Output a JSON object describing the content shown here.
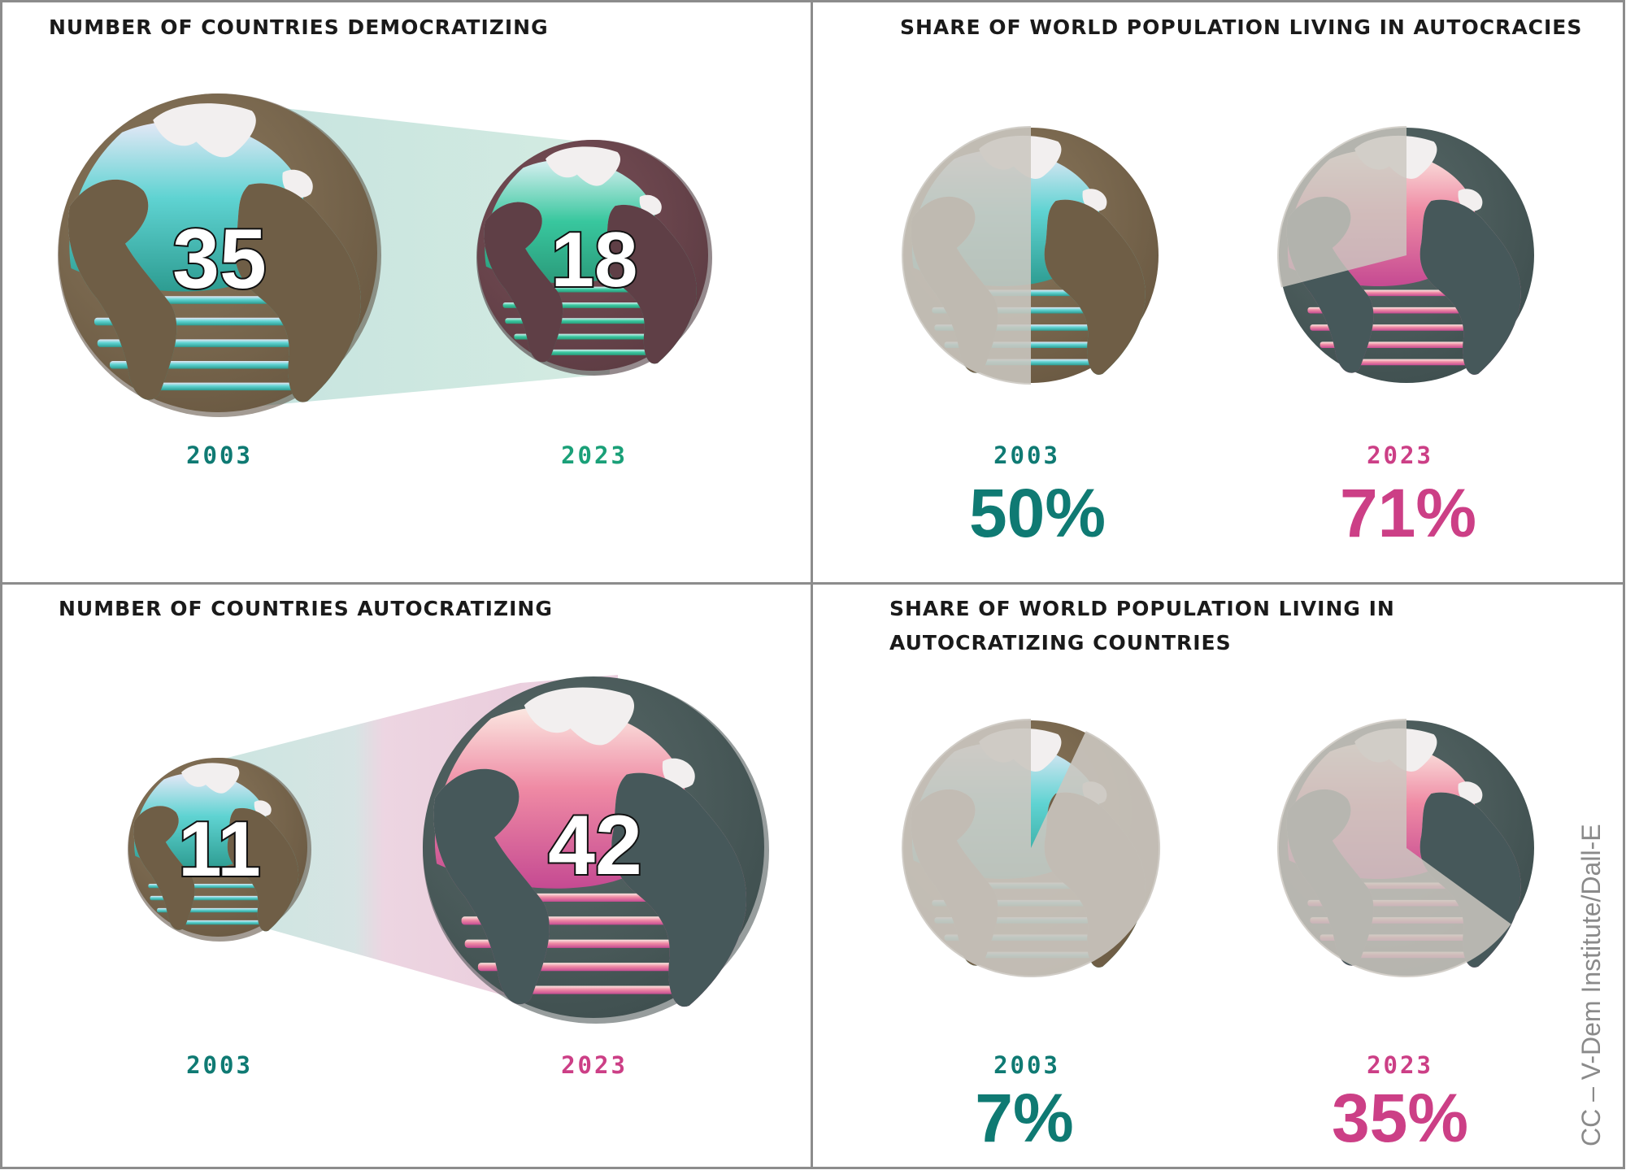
{
  "colors": {
    "teal": "#0f7a73",
    "green": "#1aa078",
    "pink": "#cc3f86",
    "brown_globe": "#7d6a4e",
    "slate_globe": "#4e5f5e",
    "gray_pie": "#cbc7c0",
    "border": "#8c8c8c"
  },
  "panels": {
    "top_left": {
      "title": "NUMBER OF COUNTRIES DEMOCRATIZING"
    },
    "top_right": {
      "title": "SHARE OF WORLD POPULATION LIVING IN AUTOCRACIES"
    },
    "bottom_left": {
      "title": "NUMBER OF COUNTRIES AUTOCRATIZING"
    },
    "bottom_right": {
      "title_line1": "SHARE OF WORLD POPULATION LIVING IN",
      "title_line2": "AUTOCRATIZING COUNTRIES"
    }
  },
  "credit": "CC – V-Dem Institute/Dall-E",
  "chart_data": [
    {
      "type": "bar",
      "title": "NUMBER OF COUNTRIES DEMOCRATIZING",
      "categories": [
        "2003",
        "2023"
      ],
      "values": [
        35,
        18
      ],
      "labels": [
        "35",
        "18"
      ]
    },
    {
      "type": "pie",
      "title": "SHARE OF WORLD POPULATION LIVING IN AUTOCRACIES",
      "categories": [
        "2003",
        "2023"
      ],
      "values": [
        50,
        71
      ],
      "labels": [
        "50%",
        "71%"
      ]
    },
    {
      "type": "bar",
      "title": "NUMBER OF COUNTRIES AUTOCRATIZING",
      "categories": [
        "2003",
        "2023"
      ],
      "values": [
        11,
        42
      ],
      "labels": [
        "11",
        "42"
      ]
    },
    {
      "type": "pie",
      "title": "SHARE OF WORLD POPULATION LIVING IN AUTOCRATIZING COUNTRIES",
      "categories": [
        "2003",
        "2023"
      ],
      "values": [
        7,
        35
      ],
      "labels": [
        "7%",
        "35%"
      ]
    }
  ]
}
